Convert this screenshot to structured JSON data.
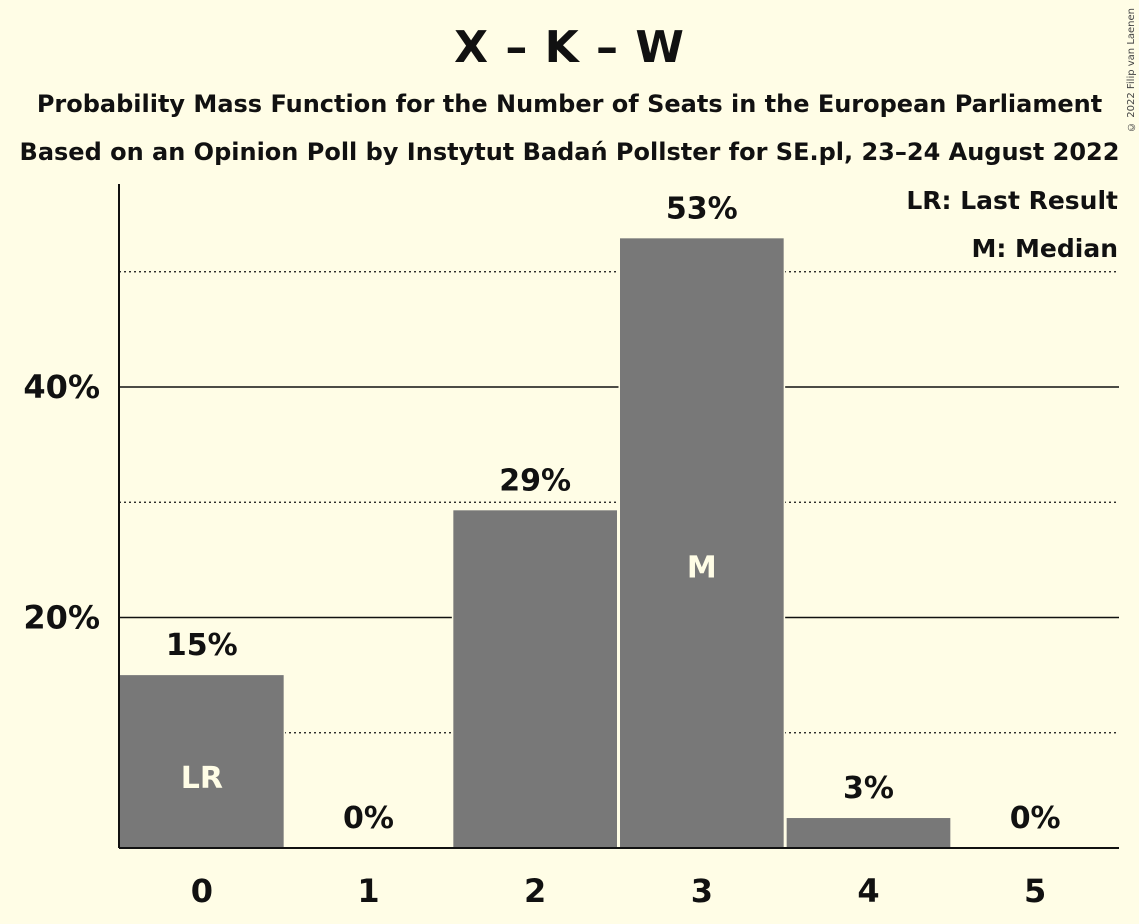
{
  "header": {
    "title": "X – K – W",
    "subtitle1": "Probability Mass Function for the Number of Seats in the European Parliament",
    "subtitle2": "Based on an Opinion Poll by Instytut Badań Pollster for SE.pl, 23–24 August 2022",
    "credit": "© 2022 Filip van Laenen"
  },
  "legend": {
    "last_result": "LR: Last Result",
    "median": "M: Median"
  },
  "colors": {
    "background": "#fffde6",
    "bar": "#787878",
    "bar_label": "#fffde6"
  },
  "chart_data": {
    "type": "bar",
    "title": "X – K – W",
    "xlabel": "",
    "ylabel": "",
    "categories": [
      "0",
      "1",
      "2",
      "3",
      "4",
      "5"
    ],
    "values": [
      15,
      0,
      29.3,
      52.9,
      2.6,
      0
    ],
    "data_labels": [
      "15%",
      "0%",
      "29%",
      "53%",
      "3%",
      "0%"
    ],
    "bar_markers": [
      "LR",
      "",
      "",
      "M",
      "",
      ""
    ],
    "yticks": [
      20,
      40
    ],
    "ytick_labels": [
      "20%",
      "40%"
    ],
    "minor_gridlines": [
      10,
      30,
      50
    ],
    "ylim": [
      0,
      58
    ],
    "grid": true,
    "legend_position": "top-right"
  }
}
